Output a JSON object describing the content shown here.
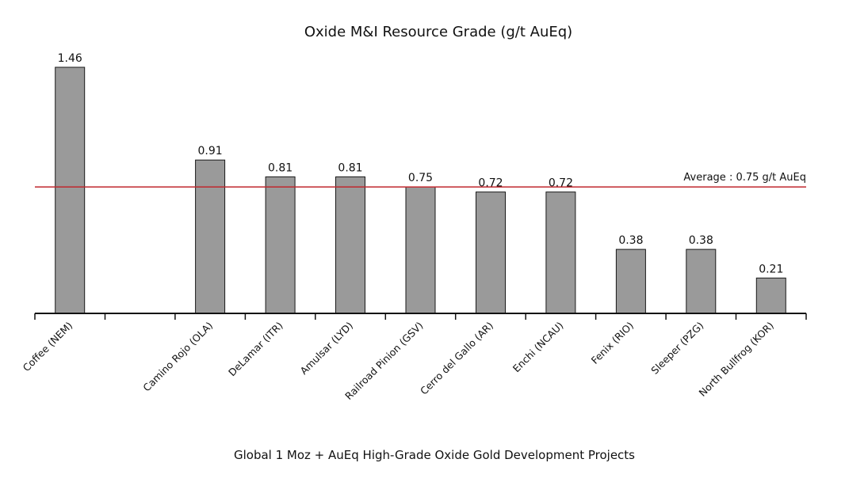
{
  "chart_data": {
    "type": "bar",
    "title": "Oxide M&I Resource Grade (g/t  AuEq)",
    "xlabel": "Global 1 Moz + AuEq High-Grade Oxide Gold Development Projects",
    "ylabel": "",
    "ylim": [
      0,
      1.46
    ],
    "grid": false,
    "categories": [
      "Coffee (NEM)",
      "",
      "Camino Rojo (OLA)",
      "DeLamar (ITR)",
      "Amulsar (LYD)",
      "Railroad Pinion (GSV)",
      "Cerro del Gallo (AR)",
      "Enchi (NCAU)",
      "Fenix (RIO)",
      "Sleeper (PZG)",
      "North Bullfrog (KOR)"
    ],
    "values": [
      1.46,
      null,
      0.91,
      0.81,
      0.81,
      0.75,
      0.72,
      0.72,
      0.38,
      0.38,
      0.21
    ],
    "value_labels": [
      "1.46",
      "",
      "0.91",
      "0.81",
      "0.81",
      "0.75",
      "0.72",
      "0.72",
      "0.38",
      "0.38",
      "0.21"
    ],
    "average": {
      "value": 0.75,
      "label": "Average : 0.75 g/t  AuEq"
    },
    "colors": {
      "bar_fill": "#9a9a9a",
      "bar_stroke": "#1a1a1a",
      "average_line": "#c0272d",
      "axis": "#111111",
      "text": "#111111"
    }
  }
}
